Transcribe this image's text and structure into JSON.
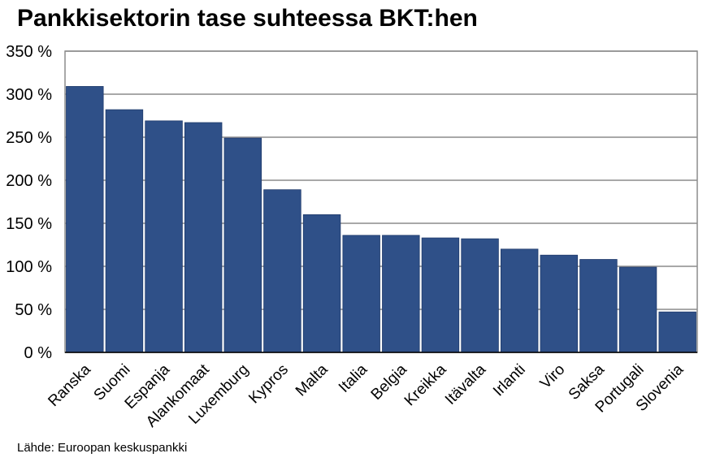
{
  "chart_data": {
    "type": "bar",
    "title": "Pankkisektorin tase suhteessa BKT:hen",
    "source": "Lähde: Euroopan keskuspankki",
    "categories": [
      "Ranska",
      "Suomi",
      "Espanja",
      "Alankomaat",
      "Luxemburg",
      "Kypros",
      "Malta",
      "Italia",
      "Belgia",
      "Kreikka",
      "Itävalta",
      "Irlanti",
      "Viro",
      "Saksa",
      "Portugali",
      "Slovenia"
    ],
    "values": [
      309,
      282,
      269,
      267,
      249,
      189,
      160,
      136,
      136,
      133,
      132,
      120,
      113,
      108,
      99,
      47
    ],
    "unit": "%",
    "ylim": [
      0,
      350
    ],
    "yticks": [
      0,
      50,
      100,
      150,
      200,
      250,
      300,
      350
    ],
    "ytick_labels": [
      "0 %",
      "50 %",
      "100 %",
      "150 %",
      "200 %",
      "250 %",
      "300 %",
      "350 %"
    ],
    "xlabel": "",
    "ylabel": "",
    "grid": true,
    "legend": "none",
    "bar_color": "#2f5088"
  }
}
